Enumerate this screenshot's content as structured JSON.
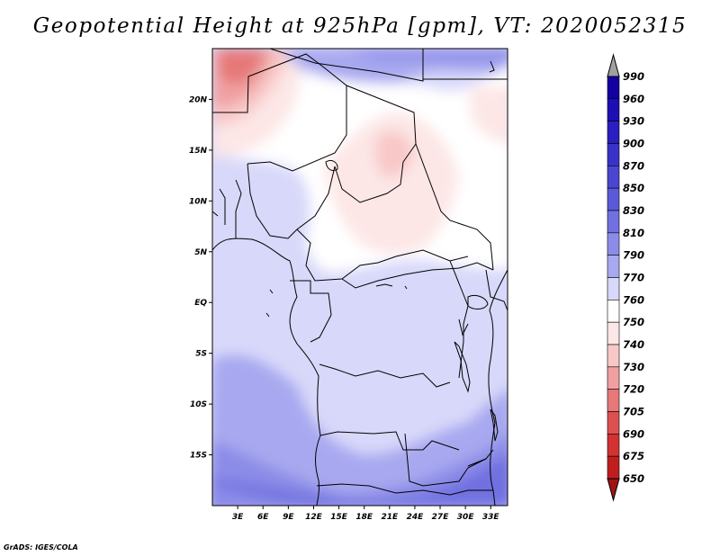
{
  "title": "Geopotential Height at 925hPa [gpm], VT: 2020052315",
  "credit": "GrADS: IGES/COLA",
  "map": {
    "lon_range": [
      0,
      35
    ],
    "lat_range": [
      -20,
      25
    ],
    "lat_ticks": [
      {
        "value": 20,
        "label": "20N"
      },
      {
        "value": 15,
        "label": "15N"
      },
      {
        "value": 10,
        "label": "10N"
      },
      {
        "value": 5,
        "label": "5N"
      },
      {
        "value": 0,
        "label": "EQ"
      },
      {
        "value": -5,
        "label": "5S"
      },
      {
        "value": -10,
        "label": "10S"
      },
      {
        "value": -15,
        "label": "15S"
      }
    ],
    "lon_ticks": [
      {
        "value": 3,
        "label": "3E"
      },
      {
        "value": 6,
        "label": "6E"
      },
      {
        "value": 9,
        "label": "9E"
      },
      {
        "value": 12,
        "label": "12E"
      },
      {
        "value": 15,
        "label": "15E"
      },
      {
        "value": 18,
        "label": "18E"
      },
      {
        "value": 21,
        "label": "21E"
      },
      {
        "value": 24,
        "label": "24E"
      },
      {
        "value": 27,
        "label": "27E"
      },
      {
        "value": 30,
        "label": "30E"
      },
      {
        "value": 33,
        "label": "33E"
      }
    ]
  },
  "colorbar": {
    "levels": [
      {
        "label": "990",
        "color": "#1400a0"
      },
      {
        "label": "960",
        "color": "#1e0fb4"
      },
      {
        "label": "930",
        "color": "#2a1fc0"
      },
      {
        "label": "900",
        "color": "#3a32c8"
      },
      {
        "label": "870",
        "color": "#4a46d0"
      },
      {
        "label": "850",
        "color": "#5a5ad8"
      },
      {
        "label": "830",
        "color": "#7070e0"
      },
      {
        "label": "810",
        "color": "#8c8ce8"
      },
      {
        "label": "790",
        "color": "#a8a8f0"
      },
      {
        "label": "770",
        "color": "#d8d8fa"
      },
      {
        "label": "760",
        "color": "#ffffff"
      },
      {
        "label": "750",
        "color": "#fde6e6"
      },
      {
        "label": "740",
        "color": "#f8c8c8"
      },
      {
        "label": "730",
        "color": "#f0a0a0"
      },
      {
        "label": "720",
        "color": "#e67878"
      },
      {
        "label": "705",
        "color": "#dc5050"
      },
      {
        "label": "690",
        "color": "#d23232"
      },
      {
        "label": "675",
        "color": "#c01e1e"
      },
      {
        "label": "650",
        "color": "#a01414"
      }
    ]
  }
}
